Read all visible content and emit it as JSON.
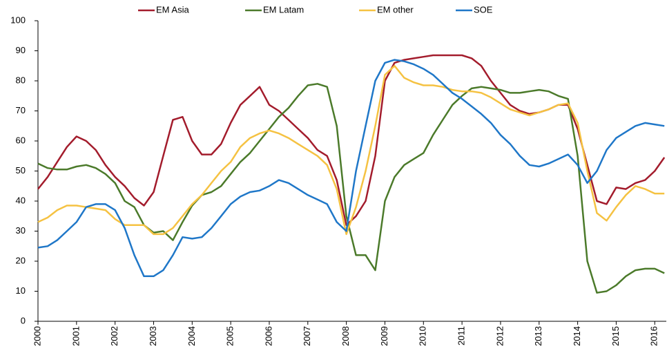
{
  "chart_data": {
    "type": "line",
    "x": [
      2000,
      2000.25,
      2000.5,
      2000.75,
      2001,
      2001.25,
      2001.5,
      2001.75,
      2002,
      2002.25,
      2002.5,
      2002.75,
      2003,
      2003.25,
      2003.5,
      2003.75,
      2004,
      2004.25,
      2004.5,
      2004.75,
      2005,
      2005.25,
      2005.5,
      2005.75,
      2006,
      2006.25,
      2006.5,
      2006.75,
      2007,
      2007.25,
      2007.5,
      2007.75,
      2008,
      2008.25,
      2008.5,
      2008.75,
      2009,
      2009.25,
      2009.5,
      2009.75,
      2010,
      2010.25,
      2010.5,
      2010.75,
      2011,
      2011.25,
      2011.5,
      2011.75,
      2012,
      2012.25,
      2012.5,
      2012.75,
      2013,
      2013.25,
      2013.5,
      2013.75,
      2014,
      2014.25,
      2014.5,
      2014.75,
      2015,
      2015.25,
      2015.5,
      2015.75,
      2016,
      2016.25
    ],
    "series": [
      {
        "name": "EM Asia",
        "color": "#a31c2c",
        "values": [
          44,
          48,
          53,
          58,
          61.5,
          60,
          57,
          52,
          48,
          45,
          41,
          38.5,
          43,
          55,
          67,
          68,
          60,
          55.5,
          55.5,
          59,
          66,
          72,
          75,
          78,
          72,
          70,
          67,
          64,
          61,
          57,
          55,
          47,
          32,
          35,
          40,
          55,
          80,
          86,
          87,
          87.5,
          88,
          88.5,
          88.5,
          88.5,
          88.5,
          87.5,
          85,
          80,
          76,
          72,
          70,
          69,
          69.5,
          70.5,
          72,
          72,
          64,
          52,
          40,
          39,
          44.5,
          44,
          46,
          47,
          50,
          54.5
        ]
      },
      {
        "name": "EM Latam",
        "color": "#4b7a2a",
        "values": [
          52.5,
          51,
          50.5,
          50.5,
          51.5,
          52,
          51,
          49,
          46,
          40,
          38,
          32,
          29.5,
          30,
          27,
          33,
          38.5,
          42,
          43,
          45,
          49,
          53,
          56,
          60,
          64,
          68,
          71,
          75,
          78.5,
          79,
          78,
          65,
          35,
          22,
          22,
          17,
          40,
          48,
          52,
          54,
          56,
          62,
          67,
          72,
          75,
          77.5,
          78,
          77.5,
          77,
          76,
          76,
          76.5,
          77,
          76.5,
          75,
          74,
          55,
          20,
          9.5,
          10,
          12,
          15,
          17,
          17.5,
          17.5,
          16
        ]
      },
      {
        "name": "EM other",
        "color": "#f5c242",
        "values": [
          33,
          34.5,
          37,
          38.5,
          38.5,
          38,
          37.5,
          37,
          34,
          32,
          32,
          32,
          29,
          29,
          31,
          35,
          39,
          42,
          46,
          50,
          53,
          58,
          61,
          62.5,
          63.5,
          62.5,
          61,
          59,
          57,
          55,
          52,
          44,
          29,
          38,
          50,
          65,
          82,
          85,
          81,
          79.5,
          78.5,
          78.5,
          78,
          77,
          76.5,
          76.5,
          76,
          74.5,
          72.5,
          70.5,
          69.5,
          68.5,
          69.5,
          70.5,
          72,
          72.5,
          66,
          50,
          36,
          33.5,
          38,
          42,
          45,
          44,
          42.5,
          42.5
        ]
      },
      {
        "name": "SOE",
        "color": "#1f77c8",
        "values": [
          24.5,
          25,
          27,
          30,
          33,
          38,
          39,
          39,
          37,
          31,
          22,
          15,
          15,
          17,
          22,
          28,
          27.5,
          28,
          31,
          35,
          39,
          41.5,
          43,
          43.5,
          45,
          47,
          46,
          44,
          42,
          40.5,
          39,
          33,
          30,
          50,
          65,
          80,
          86,
          87,
          86.5,
          85.5,
          84,
          82,
          79,
          76,
          74,
          71.5,
          69,
          66,
          62,
          59,
          55,
          52,
          51.5,
          52.5,
          54,
          55.5,
          52,
          46,
          50,
          57,
          61,
          63,
          65,
          66,
          65.5,
          65
        ]
      }
    ],
    "xlim": [
      2000,
      2016.3
    ],
    "xticks": [
      2000,
      2001,
      2002,
      2003,
      2004,
      2005,
      2006,
      2007,
      2008,
      2009,
      2010,
      2011,
      2012,
      2013,
      2014,
      2015,
      2016
    ],
    "ylim": [
      0,
      100
    ],
    "yticks": [
      0,
      10,
      20,
      30,
      40,
      50,
      60,
      70,
      80,
      90,
      100
    ],
    "legend": "top"
  }
}
